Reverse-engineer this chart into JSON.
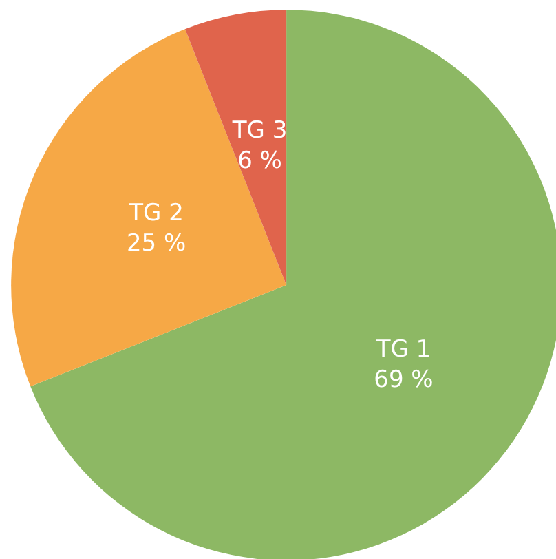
{
  "chart_data": {
    "type": "pie",
    "categories": [
      "TG 1",
      "TG 2",
      "TG 3"
    ],
    "values": [
      69,
      25,
      6
    ],
    "colors": [
      "#8db864",
      "#f6a846",
      "#e0644c"
    ],
    "value_labels": [
      "69 %",
      "25 %",
      "6 %"
    ],
    "legend": false
  }
}
